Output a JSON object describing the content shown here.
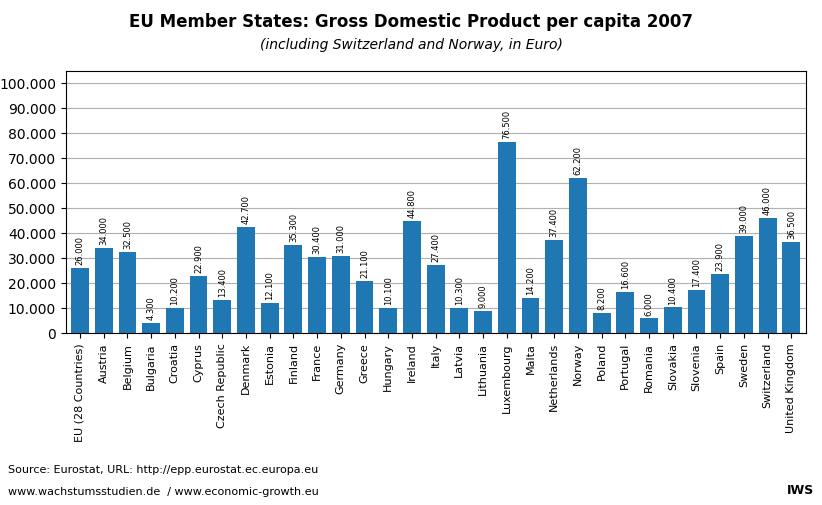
{
  "chart_data": {
    "type": "bar",
    "title": "EU Member States: Gross Domestic Product per capita 2007",
    "subtitle": "(including Switzerland and Norway, in Euro)",
    "categories": [
      "EU (28 Countries)",
      "Austria",
      "Belgium",
      "Bulgaria",
      "Croatia",
      "Cyprus",
      "Czech Republic",
      "Denmark",
      "Estonia",
      "Finland",
      "France",
      "Germany",
      "Greece",
      "Hungary",
      "Ireland",
      "Italy",
      "Latvia",
      "Lithuania",
      "Luxembourg",
      "Malta",
      "Netherlands",
      "Norway",
      "Poland",
      "Portugal",
      "Romania",
      "Slovakia",
      "Slovenia",
      "Spain",
      "Sweden",
      "Switzerland",
      "United Kingdom"
    ],
    "values": [
      26000,
      34000,
      32500,
      4300,
      10200,
      22900,
      13400,
      42700,
      12100,
      35300,
      30400,
      31000,
      21100,
      10100,
      44800,
      27400,
      10300,
      9000,
      76500,
      14200,
      37400,
      62200,
      8200,
      16600,
      6000,
      10400,
      17400,
      23900,
      39000,
      46000,
      36500
    ],
    "value_labels": [
      "26.000",
      "34.000",
      "32.500",
      "4.300",
      "10.200",
      "22.900",
      "13.400",
      "42.700",
      "12.100",
      "35.300",
      "30.400",
      "31.000",
      "21.100",
      "10.100",
      "44.800",
      "27.400",
      "10.300",
      "9.000",
      "76.500",
      "14.200",
      "37.400",
      "62.200",
      "8.200",
      "16.600",
      "6.000",
      "10.400",
      "17.400",
      "23.900",
      "39.000",
      "46.000",
      "36.500"
    ],
    "data_labels": true,
    "ylim": [
      0,
      105000
    ],
    "yticks": [
      0,
      {
        "value": 10000,
        "label": "10.000"
      },
      {
        "value": 20000,
        "label": "20.000"
      },
      {
        "value": 30000,
        "label": "30.000"
      },
      {
        "value": 40000,
        "label": "40.000"
      },
      {
        "value": 50000,
        "label": "50.000"
      },
      {
        "value": 60000,
        "label": "60.000"
      },
      {
        "value": 70000,
        "label": "70.000"
      },
      {
        "value": 80000,
        "label": "80.000"
      },
      {
        "value": 90000,
        "label": "90.000"
      },
      {
        "value": 100000,
        "label": "100.000"
      }
    ],
    "grid": true,
    "annotations": [
      "Source: Eurostat, URL: http://epp.eurostat.ec.europa.eu",
      "www.wachstumsstudien.de  / www.economic-growth.eu",
      "IWS"
    ]
  }
}
